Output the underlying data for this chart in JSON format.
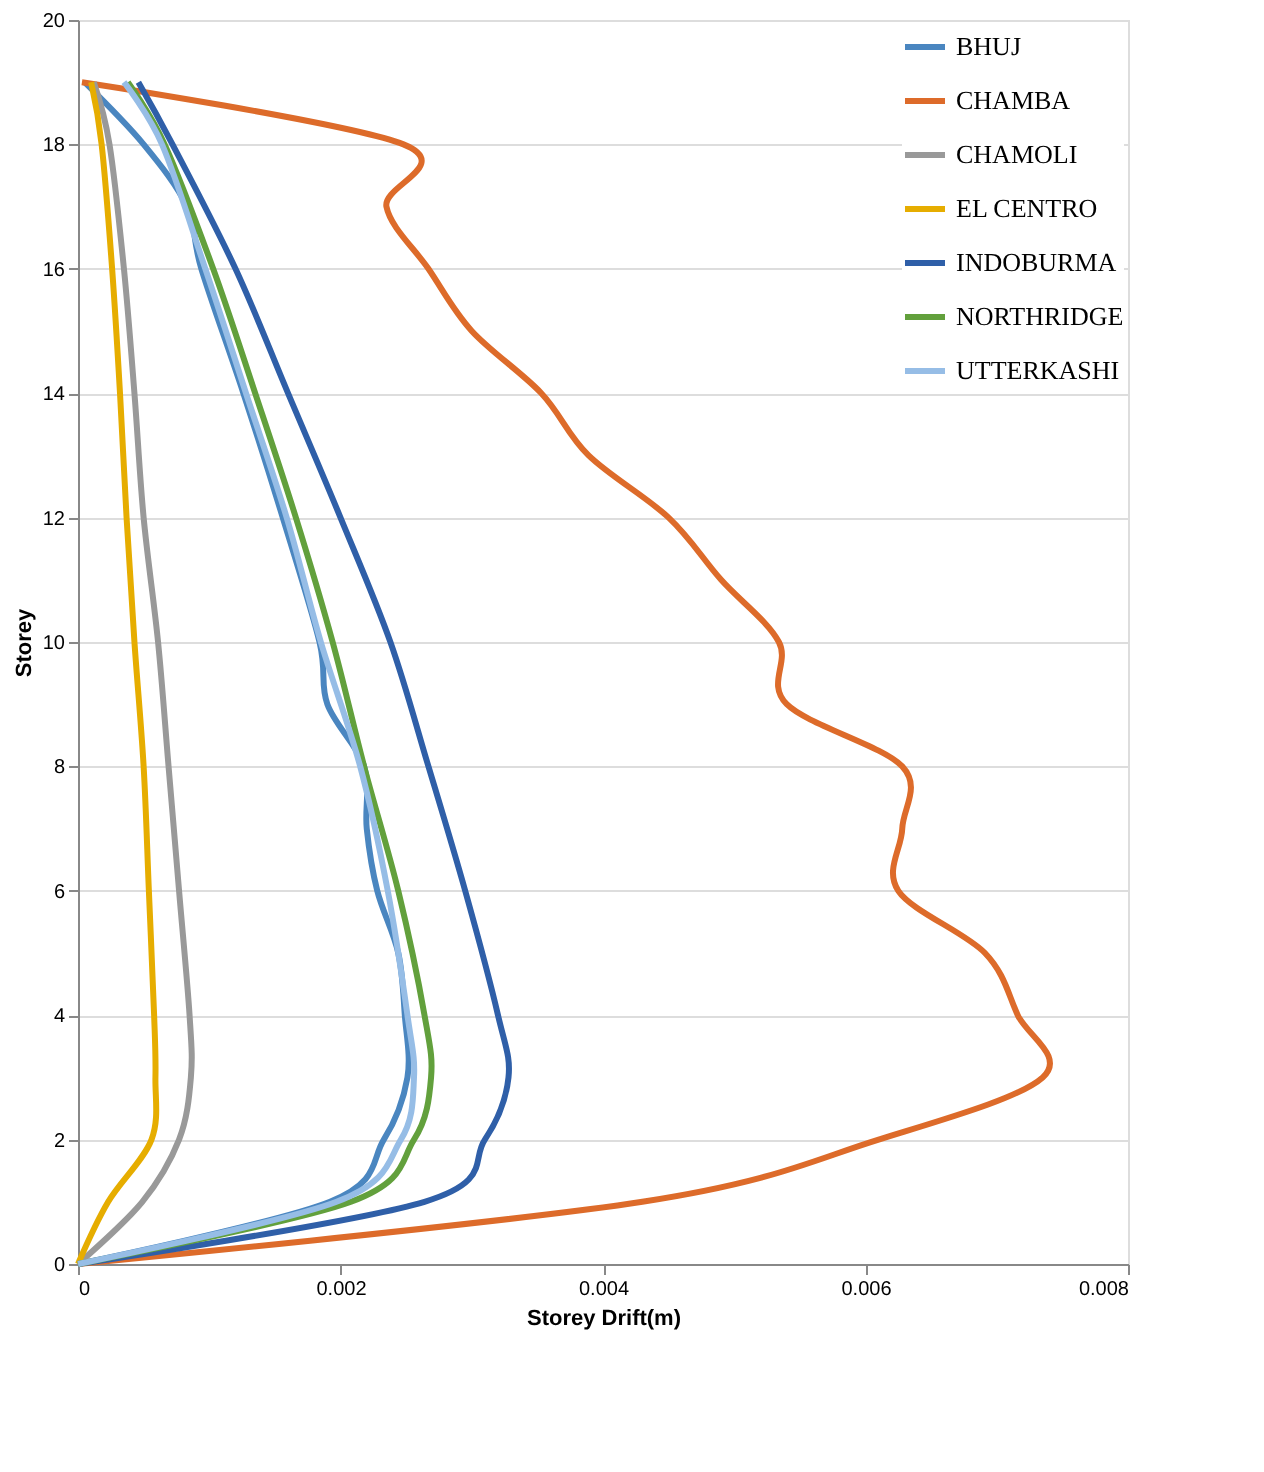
{
  "chart_data": {
    "type": "line",
    "xlabel": "Storey Drift(m)",
    "ylabel": "Storey",
    "xlim": [
      0,
      0.008
    ],
    "xticks": [
      0,
      0.002,
      0.004,
      0.006,
      0.008
    ],
    "ylim": [
      0,
      20
    ],
    "yticks": [
      0,
      2,
      4,
      6,
      8,
      10,
      12,
      14,
      16,
      18,
      20
    ],
    "grid": "y",
    "legend": "top right",
    "marker": "none",
    "line_style": "solid",
    "series": [
      {
        "name": "BHUJ",
        "color": "#4a86c0",
        "x": [
          0,
          0.00192,
          0.00233,
          0.00251,
          0.00249,
          0.00244,
          0.00228,
          0.0022,
          0.00218,
          0.0019,
          0.00184,
          0.00156,
          0.00126,
          0.00094,
          0.00083,
          0.0005,
          5e-05
        ],
        "values": [
          0,
          1,
          2,
          3,
          4,
          5,
          6,
          7,
          8,
          9,
          10,
          12,
          14,
          16,
          17,
          18,
          19
        ]
      },
      {
        "name": "CHAMBA",
        "color": "#dd6b2a",
        "x": [
          0,
          0.0043,
          0.0061,
          0.00735,
          0.00716,
          0.00691,
          0.00625,
          0.00628,
          0.00628,
          0.0054,
          0.00534,
          0.0049,
          0.0045,
          0.00389,
          0.00353,
          0.003,
          0.00267,
          0.00235,
          0.00248,
          3e-05
        ],
        "values": [
          0,
          1,
          2,
          3,
          4,
          5,
          6,
          7,
          8,
          9,
          10,
          11,
          12,
          13,
          14,
          15,
          16,
          17,
          18,
          19
        ]
      },
      {
        "name": "CHAMOLI",
        "color": "#999999",
        "x": [
          0,
          0.00049,
          0.00077,
          0.00086,
          0.00085,
          0.00077,
          0.00069,
          0.00061,
          0.0005,
          0.00043,
          0.00035,
          0.00024,
          0.00012
        ],
        "values": [
          0,
          1,
          2,
          3,
          4,
          6,
          8,
          10,
          12,
          14,
          16,
          18,
          19
        ]
      },
      {
        "name": "EL CENTRO",
        "color": "#e6ad00",
        "x": [
          0,
          0.00023,
          0.00056,
          0.00059,
          0.00058,
          0.00054,
          0.0005,
          0.00043,
          0.00037,
          0.00032,
          0.00026,
          0.00018,
          0.0001
        ],
        "values": [
          0,
          1,
          2,
          3,
          4,
          6,
          8,
          10,
          12,
          14,
          16,
          18,
          19
        ]
      },
      {
        "name": "INDOBURMA",
        "color": "#2f5fa8",
        "x": [
          0,
          0.00264,
          0.0031,
          0.00328,
          0.0032,
          0.00295,
          0.00267,
          0.00238,
          0.002,
          0.0016,
          0.0012,
          0.00072,
          0.00046
        ],
        "values": [
          0,
          1,
          2,
          3,
          4,
          6,
          8,
          10,
          12,
          14,
          16,
          18,
          19
        ]
      },
      {
        "name": "NORTHRIDGE",
        "color": "#62a03c",
        "x": [
          0,
          0.00208,
          0.00256,
          0.00269,
          0.00264,
          0.00244,
          0.00218,
          0.00194,
          0.00166,
          0.00135,
          0.00103,
          0.00066,
          0.00038
        ],
        "values": [
          0,
          1,
          2,
          3,
          4,
          6,
          8,
          10,
          12,
          14,
          16,
          18,
          19
        ]
      },
      {
        "name": "UTTERKASHI",
        "color": "#96bde6",
        "x": [
          0,
          0.00197,
          0.00246,
          0.00256,
          0.00251,
          0.00236,
          0.00215,
          0.00185,
          0.00159,
          0.00128,
          0.00097,
          0.00064,
          0.00035
        ],
        "values": [
          0,
          1,
          2,
          3,
          4,
          6,
          8,
          10,
          12,
          14,
          16,
          18,
          19
        ]
      }
    ]
  }
}
